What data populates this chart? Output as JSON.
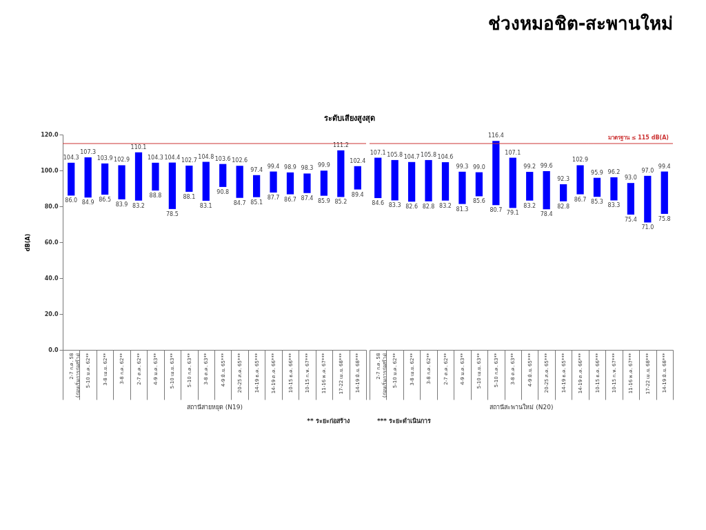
{
  "chart_data": [
    {
      "type": "bar",
      "title": "ระดับเสียงสูงสุด",
      "ylabel": "dB(A)",
      "xlabel": "สถานีสายหยุด (N19)",
      "categories": [
        "2-7 ก.ค. 58\n(ก่อนเริ่มการก่อสร้าง)",
        "5-10 ม.ค. 62**",
        "3-8 เม.ย. 62**",
        "3-8 ก.ค. 62**",
        "2-7 ต.ค. 62**",
        "4-9 ม.ค. 63**",
        "5-10 เม.ย. 63**",
        "5-10 ก.ค. 63**",
        "3-8 ต.ค. 63**",
        "4-9 มิ.ย. 65***",
        "20-25 ส.ค. 65***",
        "14-19 ธ.ค. 65***",
        "14-19 ต.ค. 66***",
        "10-15 ธ.ค. 66***",
        "10-15 ก.พ. 67***",
        "11-16 พ.ค. 67***",
        "17-22 เม.ย. 68***",
        "14-19 มิ.ย. 68***"
      ],
      "base": [
        86.0,
        84.9,
        86.5,
        83.9,
        83.2,
        88.8,
        78.5,
        88.1,
        83.1,
        90.8,
        84.7,
        85.1,
        87.7,
        86.7,
        87.4,
        85.9,
        85.2,
        89.4
      ],
      "values": [
        18.3,
        22.4,
        17.4,
        19.0,
        26.9,
        15.5,
        25.9,
        14.6,
        21.7,
        12.8,
        17.9,
        12.3,
        11.7,
        12.2,
        10.9,
        14.0,
        26.0,
        13.0
      ],
      "color": "#0000ff",
      "ylim": [
        0,
        120
      ],
      "yticks": [
        {
          "value": 0,
          "label": "0.0"
        },
        {
          "value": 20,
          "label": "20.0"
        },
        {
          "value": 40,
          "label": "40.0"
        },
        {
          "value": 60,
          "label": "60.0"
        },
        {
          "value": 80,
          "label": "80.0"
        },
        {
          "value": 100,
          "label": "100.0"
        },
        {
          "value": 120,
          "label": "120.0"
        }
      ],
      "ref_lines": [
        {
          "axis": "y",
          "value": 115,
          "color": "#cc3333"
        }
      ],
      "annotations": [
        "** ระยะก่อสร้าง",
        {
          "text": "104.3",
          "x": "2-7 ก.ค. 58\n(ก่อนเริ่มการก่อสร้าง)",
          "y": 104.3
        },
        {
          "text": "86.0",
          "x": "2-7 ก.ค. 58\n(ก่อนเริ่มการก่อสร้าง)",
          "y": 86.0
        },
        {
          "text": "107.3",
          "x": "5-10 ม.ค. 62**",
          "y": 107.3
        },
        {
          "text": "84.9",
          "x": "5-10 ม.ค. 62**",
          "y": 84.9
        },
        {
          "text": "103.9",
          "x": "3-8 เม.ย. 62**",
          "y": 103.9
        },
        {
          "text": "86.5",
          "x": "3-8 เม.ย. 62**",
          "y": 86.5
        },
        {
          "text": "102.9",
          "x": "3-8 ก.ค. 62**",
          "y": 102.9
        },
        {
          "text": "83.9",
          "x": "3-8 ก.ค. 62**",
          "y": 83.9
        },
        {
          "text": "110.1",
          "x": "2-7 ต.ค. 62**",
          "y": 110.1
        },
        {
          "text": "83.2",
          "x": "2-7 ต.ค. 62**",
          "y": 83.2
        },
        {
          "text": "104.3",
          "x": "4-9 ม.ค. 63**",
          "y": 104.3
        },
        {
          "text": "88.8",
          "x": "4-9 ม.ค. 63**",
          "y": 88.8
        },
        {
          "text": "104.4",
          "x": "5-10 เม.ย. 63**",
          "y": 104.4
        },
        {
          "text": "78.5",
          "x": "5-10 เม.ย. 63**",
          "y": 78.5
        },
        {
          "text": "102.7",
          "x": "5-10 ก.ค. 63**",
          "y": 102.7
        },
        {
          "text": "88.1",
          "x": "5-10 ก.ค. 63**",
          "y": 88.1
        },
        {
          "text": "104.8",
          "x": "3-8 ต.ค. 63**",
          "y": 104.8
        },
        {
          "text": "83.1",
          "x": "3-8 ต.ค. 63**",
          "y": 83.1
        },
        {
          "text": "103.6",
          "x": "4-9 มิ.ย. 65***",
          "y": 103.6
        },
        {
          "text": "90.8",
          "x": "4-9 มิ.ย. 65***",
          "y": 90.8
        },
        {
          "text": "102.6",
          "x": "20-25 ส.ค. 65***",
          "y": 102.6
        },
        {
          "text": "84.7",
          "x": "20-25 ส.ค. 65***",
          "y": 84.7
        },
        {
          "text": "97.4",
          "x": "14-19 ธ.ค. 65***",
          "y": 97.4
        },
        {
          "text": "85.1",
          "x": "14-19 ธ.ค. 65***",
          "y": 85.1
        },
        {
          "text": "99.4",
          "x": "14-19 ต.ค. 66***",
          "y": 99.4
        },
        {
          "text": "87.7",
          "x": "14-19 ต.ค. 66***",
          "y": 87.7
        },
        {
          "text": "98.9",
          "x": "10-15 ธ.ค. 66***",
          "y": 98.9
        },
        {
          "text": "86.7",
          "x": "10-15 ธ.ค. 66***",
          "y": 86.7
        },
        {
          "text": "98.3",
          "x": "10-15 ก.พ. 67***",
          "y": 98.3
        },
        {
          "text": "87.4",
          "x": "10-15 ก.พ. 67***",
          "y": 87.4
        },
        {
          "text": "99.9",
          "x": "11-16 พ.ค. 67***",
          "y": 99.9
        },
        {
          "text": "85.9",
          "x": "11-16 พ.ค. 67***",
          "y": 85.9
        },
        {
          "text": "111.2",
          "x": "17-22 เม.ย. 68***",
          "y": 111.2
        },
        {
          "text": "85.2",
          "x": "17-22 เม.ย. 68***",
          "y": 85.2
        },
        {
          "text": "102.4",
          "x": "14-19 มิ.ย. 68***",
          "y": 102.4
        },
        {
          "text": "89.4",
          "x": "14-19 มิ.ย. 68***",
          "y": 89.4
        }
      ]
    },
    {
      "type": "bar",
      "title": "ช่วงหมอชิต-สะพานใหม่",
      "xlabel": "สถานีสะพานใหม่ (N20)",
      "tick_labels": "x",
      "categories": [
        "2-7 ก.ค. 58\n(ก่อนเริ่มการก่อสร้าง)",
        "5-10 ม.ค. 62**",
        "3-8 เม.ย. 62**",
        "3-8 ก.ค. 62**",
        "2-7 ต.ค. 62**",
        "4-9 ม.ค. 63**",
        "5-10 เม.ย. 63**",
        "5-10 ก.ค. 63**",
        "3-8 ต.ค. 63**",
        "4-9 มิ.ย. 65***",
        "20-25 ส.ค. 65***",
        "14-19 ธ.ค. 65***",
        "14-19 ต.ค. 66***",
        "10-15 ธ.ค. 66***",
        "10-15 ก.พ. 67***",
        "11-16 พ.ค. 67***",
        "17-22 เม.ย. 68***",
        "14-19 มิ.ย. 68***"
      ],
      "base": [
        84.6,
        83.3,
        82.6,
        82.8,
        83.2,
        81.3,
        85.6,
        80.7,
        79.1,
        83.2,
        78.4,
        82.8,
        86.7,
        85.3,
        83.3,
        75.4,
        71.0,
        75.8
      ],
      "values": [
        22.5,
        22.5,
        22.1,
        23.0,
        21.4,
        18.0,
        13.4,
        35.7,
        28.0,
        16.0,
        21.2,
        9.5,
        16.2,
        10.6,
        12.9,
        17.6,
        26.0,
        23.6
      ],
      "color": "#0000ff",
      "ylim": [
        0,
        120
      ],
      "ref_lines": [
        {
          "axis": "y",
          "value": 115,
          "color": "#cc3333",
          "label": "มาตรฐาน ≤ 115 dB(A)"
        }
      ],
      "annotations": [
        "*** ระยะดำเนินการ",
        {
          "text": "107.1",
          "x": "2-7 ก.ค. 58\n(ก่อนเริ่มการก่อสร้าง)",
          "y": 107.1
        },
        {
          "text": "84.6",
          "x": "2-7 ก.ค. 58\n(ก่อนเริ่มการก่อสร้าง)",
          "y": 84.6
        },
        {
          "text": "105.8",
          "x": "5-10 ม.ค. 62**",
          "y": 105.8
        },
        {
          "text": "83.3",
          "x": "5-10 ม.ค. 62**",
          "y": 83.3
        },
        {
          "text": "104.7",
          "x": "3-8 เม.ย. 62**",
          "y": 104.7
        },
        {
          "text": "82.6",
          "x": "3-8 เม.ย. 62**",
          "y": 82.6
        },
        {
          "text": "105.8",
          "x": "3-8 ก.ค. 62**",
          "y": 105.8
        },
        {
          "text": "82.8",
          "x": "3-8 ก.ค. 62**",
          "y": 82.8
        },
        {
          "text": "104.6",
          "x": "2-7 ต.ค. 62**",
          "y": 104.6
        },
        {
          "text": "83.2",
          "x": "2-7 ต.ค. 62**",
          "y": 83.2
        },
        {
          "text": "99.3",
          "x": "4-9 ม.ค. 63**",
          "y": 99.3
        },
        {
          "text": "81.3",
          "x": "4-9 ม.ค. 63**",
          "y": 81.3
        },
        {
          "text": "99.0",
          "x": "5-10 เม.ย. 63**",
          "y": 99.0
        },
        {
          "text": "85.6",
          "x": "5-10 เม.ย. 63**",
          "y": 85.6
        },
        {
          "text": "116.4",
          "x": "5-10 ก.ค. 63**",
          "y": 116.4
        },
        {
          "text": "80.7",
          "x": "5-10 ก.ค. 63**",
          "y": 80.7
        },
        {
          "text": "107.1",
          "x": "3-8 ต.ค. 63**",
          "y": 107.1
        },
        {
          "text": "79.1",
          "x": "3-8 ต.ค. 63**",
          "y": 79.1
        },
        {
          "text": "99.2",
          "x": "4-9 มิ.ย. 65***",
          "y": 99.2
        },
        {
          "text": "83.2",
          "x": "4-9 มิ.ย. 65***",
          "y": 83.2
        },
        {
          "text": "99.6",
          "x": "20-25 ส.ค. 65***",
          "y": 99.6
        },
        {
          "text": "78.4",
          "x": "20-25 ส.ค. 65***",
          "y": 78.4
        },
        {
          "text": "92.3",
          "x": "14-19 ธ.ค. 65***",
          "y": 92.3
        },
        {
          "text": "82.8",
          "x": "14-19 ธ.ค. 65***",
          "y": 82.8
        },
        {
          "text": "102.9",
          "x": "14-19 ต.ค. 66***",
          "y": 102.9
        },
        {
          "text": "86.7",
          "x": "14-19 ต.ค. 66***",
          "y": 86.7
        },
        {
          "text": "95.9",
          "x": "10-15 ธ.ค. 66***",
          "y": 95.9
        },
        {
          "text": "85.3",
          "x": "10-15 ธ.ค. 66***",
          "y": 85.3
        },
        {
          "text": "96.2",
          "x": "10-15 ก.พ. 67***",
          "y": 96.2
        },
        {
          "text": "83.3",
          "x": "10-15 ก.พ. 67***",
          "y": 83.3
        },
        {
          "text": "93.0",
          "x": "11-16 พ.ค. 67***",
          "y": 93.0
        },
        {
          "text": "75.4",
          "x": "11-16 พ.ค. 67***",
          "y": 75.4
        },
        {
          "text": "97.0",
          "x": "17-22 เม.ย. 68***",
          "y": 97.0
        },
        {
          "text": "71.0",
          "x": "17-22 เม.ย. 68***",
          "y": 71.0
        },
        {
          "text": "99.4",
          "x": "14-19 มิ.ย. 68***",
          "y": 99.4
        },
        {
          "text": "75.8",
          "x": "14-19 มิ.ย. 68***",
          "y": 75.8
        }
      ]
    }
  ]
}
